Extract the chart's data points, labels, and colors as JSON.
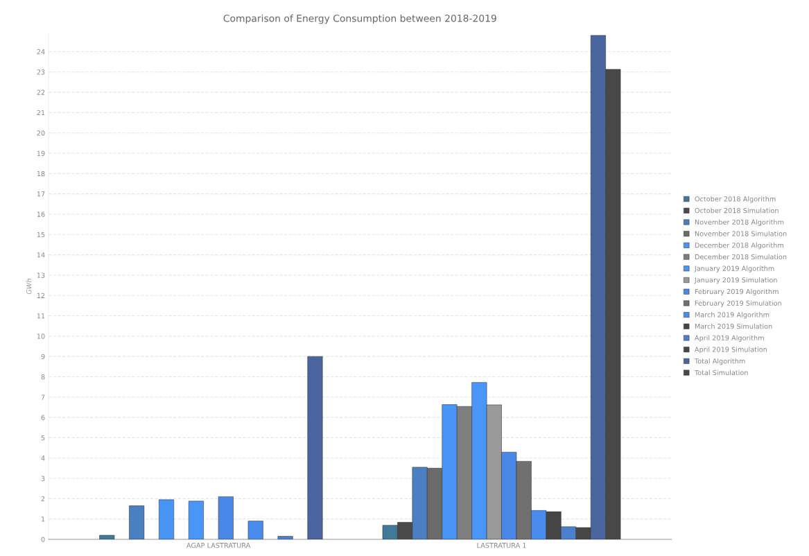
{
  "chart_data": {
    "type": "bar",
    "title": "Comparison of Energy Consumption between 2018-2019",
    "ylabel": "GWh",
    "categories": [
      "AGAP LASTRATURA",
      "LASTRATURA 1"
    ],
    "series": [
      {
        "name": "October 2018 Algorithm",
        "color": "#41799a",
        "values": [
          0.2,
          0.69
        ]
      },
      {
        "name": "October 2018 Simulation",
        "color": "#4a4a4a",
        "values": [
          null,
          0.84
        ]
      },
      {
        "name": "November 2018 Algorithm",
        "color": "#4a7fc1",
        "values": [
          1.65,
          3.55
        ]
      },
      {
        "name": "November 2018 Simulation",
        "color": "#6b6b6b",
        "values": [
          null,
          3.5
        ]
      },
      {
        "name": "December 2018 Algorithm",
        "color": "#4895f5",
        "values": [
          1.95,
          6.63
        ]
      },
      {
        "name": "December 2018 Simulation",
        "color": "#7f7f7f",
        "values": [
          null,
          6.54
        ]
      },
      {
        "name": "January 2019 Algorithm",
        "color": "#4a96f8",
        "values": [
          1.88,
          7.72
        ]
      },
      {
        "name": "January 2019 Simulation",
        "color": "#999999",
        "values": [
          null,
          6.62
        ]
      },
      {
        "name": "February 2019 Algorithm",
        "color": "#4a88e8",
        "values": [
          2.1,
          4.29
        ]
      },
      {
        "name": "February 2019 Simulation",
        "color": "#707070",
        "values": [
          null,
          3.84
        ]
      },
      {
        "name": "March 2019 Algorithm",
        "color": "#4a8cee",
        "values": [
          0.9,
          1.42
        ]
      },
      {
        "name": "March 2019 Simulation",
        "color": "#454545",
        "values": [
          null,
          1.36
        ]
      },
      {
        "name": "April 2019 Algorithm",
        "color": "#4a80cc",
        "values": [
          0.15,
          0.62
        ]
      },
      {
        "name": "April 2019 Simulation",
        "color": "#474747",
        "values": [
          null,
          0.58
        ]
      },
      {
        "name": "Total Algorithm",
        "color": "#4a64a0",
        "values": [
          9.0,
          24.8
        ]
      },
      {
        "name": "Total Simulation",
        "color": "#484848",
        "values": [
          null,
          23.13
        ]
      }
    ],
    "ylim": [
      0,
      24.9
    ],
    "yticks": [
      0,
      1,
      2,
      3,
      4,
      5,
      6,
      7,
      8,
      9,
      10,
      11,
      12,
      13,
      14,
      15,
      16,
      17,
      18,
      19,
      20,
      21,
      22,
      23,
      24
    ],
    "grid": "y",
    "legend": "right"
  }
}
